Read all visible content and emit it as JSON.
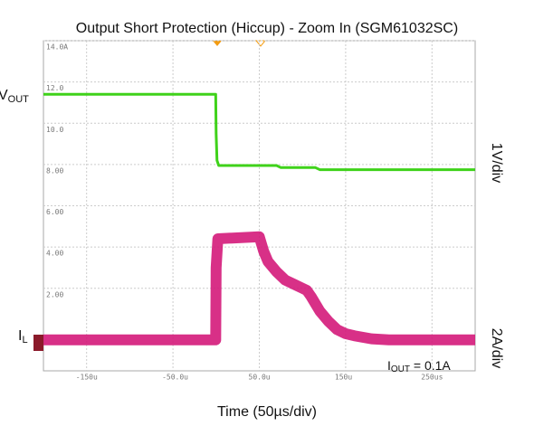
{
  "chart_data": {
    "type": "line",
    "title": "Output Short Protection (Hiccup) - Zoom In (SGM61032SC)",
    "xlabel": "Time (50µs/div)",
    "vout_label": {
      "main": "V",
      "sub": "OUT"
    },
    "il_label": {
      "main": "I",
      "sub": "L"
    },
    "vout_scale": "1V/div",
    "il_scale": "2A/div",
    "iout_note": {
      "main": "I",
      "sub": "OUT",
      "rest": " = 0.1A"
    },
    "xlim": [
      -200,
      300
    ],
    "ylim": [
      -2,
      14
    ],
    "xticks": [
      {
        "value": -150,
        "label": "-150u"
      },
      {
        "value": -50,
        "label": "-50.0u"
      },
      {
        "value": 50,
        "label": "50.0u"
      },
      {
        "value": 150,
        "label": "150u"
      },
      {
        "value": 250,
        "label": "250us"
      }
    ],
    "yticks": [
      {
        "value": 14,
        "label": "14.0A"
      },
      {
        "value": 12,
        "label": "12.0"
      },
      {
        "value": 10,
        "label": "10.0"
      },
      {
        "value": 8,
        "label": "8.00"
      },
      {
        "value": 6,
        "label": "6.00"
      },
      {
        "value": 4,
        "label": "4.00"
      },
      {
        "value": 2,
        "label": "2.00"
      }
    ],
    "grid": true,
    "series": [
      {
        "name": "VOUT",
        "color": "#3fd21a",
        "x": [
          -200,
          -0.5,
          0,
          1,
          3,
          70,
          75,
          115,
          120,
          300
        ],
        "values": [
          11.4,
          11.4,
          9.5,
          8.2,
          7.95,
          7.95,
          7.85,
          7.85,
          7.75,
          7.75
        ]
      },
      {
        "name": "IL",
        "color": "#d41a7a",
        "x": [
          -200,
          -0.5,
          0,
          2,
          50,
          55,
          60,
          70,
          80,
          90,
          100,
          105,
          110,
          120,
          130,
          140,
          150,
          160,
          180,
          200,
          300
        ],
        "values": [
          -0.5,
          -0.5,
          3,
          4.4,
          4.5,
          3.8,
          3.3,
          2.8,
          2.4,
          2.2,
          2.0,
          1.9,
          1.6,
          0.9,
          0.4,
          0.0,
          -0.2,
          -0.3,
          -0.45,
          -0.5,
          -0.5
        ]
      }
    ]
  }
}
